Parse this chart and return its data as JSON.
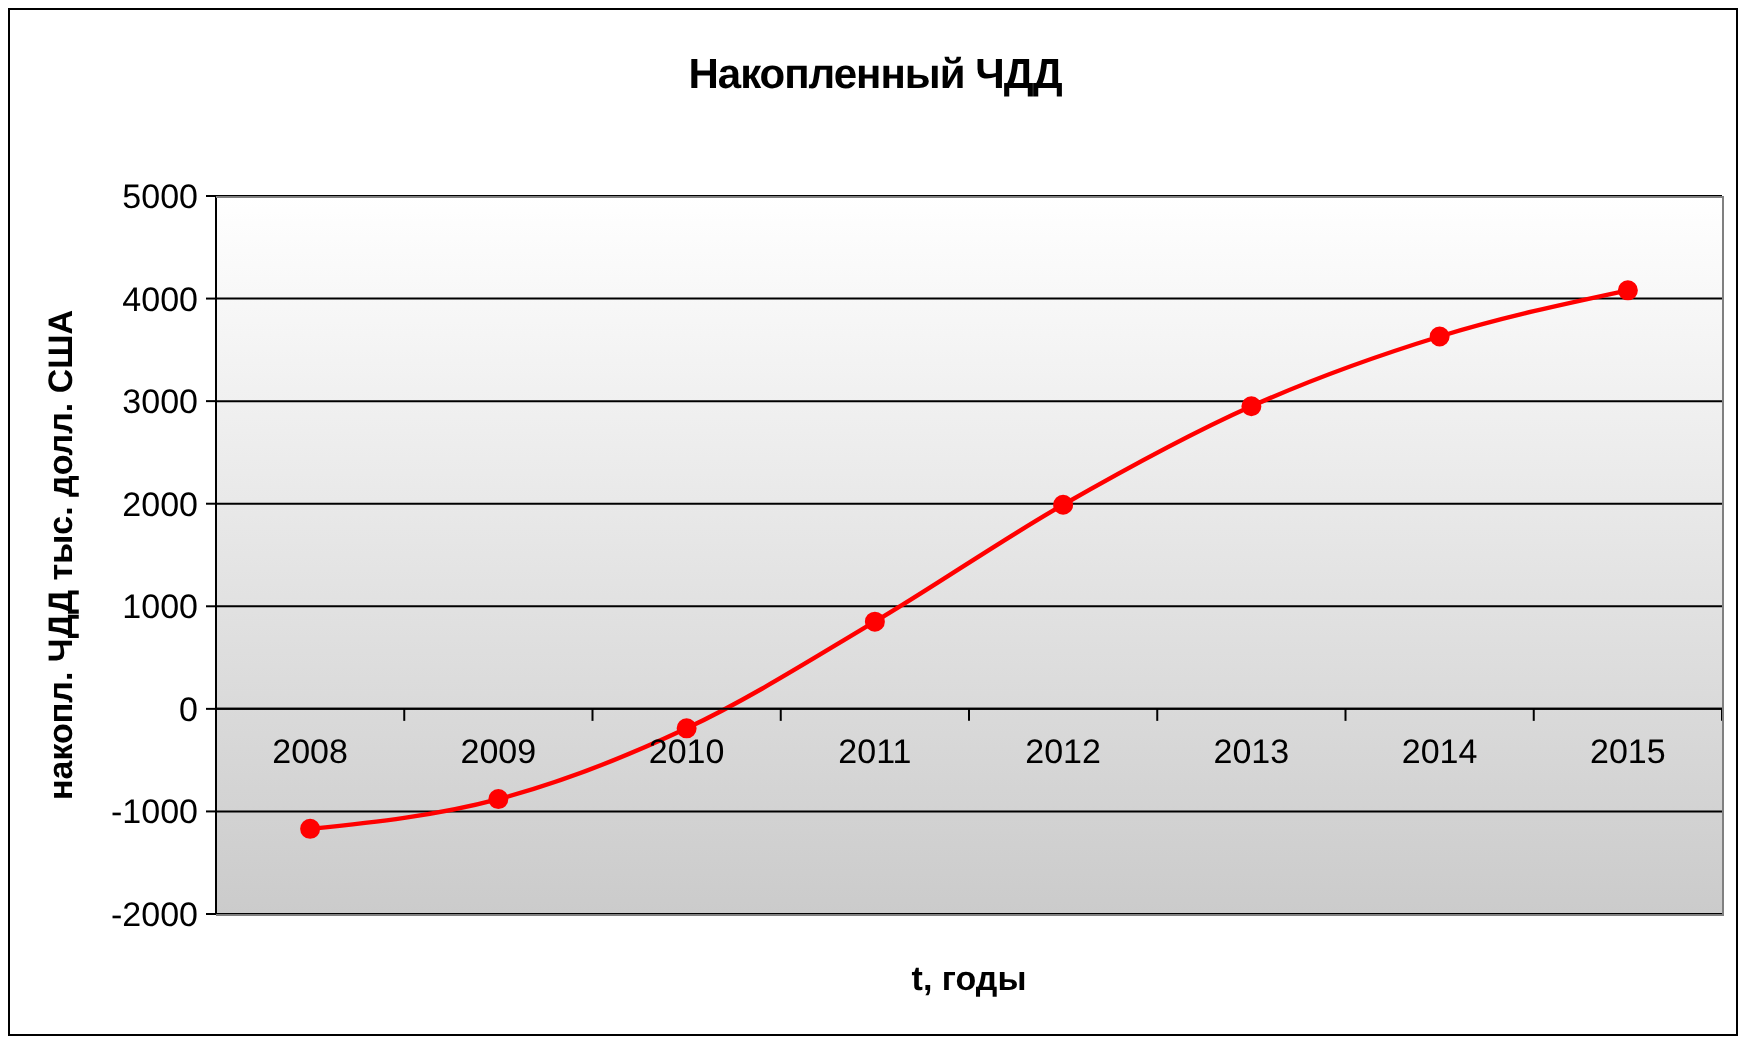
{
  "chart_data": {
    "type": "line",
    "title": "Накопленный ЧДД",
    "xlabel": "t, годы",
    "ylabel": "накопл. ЧДД тыс. долл. США",
    "categories": [
      "2008",
      "2009",
      "2010",
      "2011",
      "2012",
      "2013",
      "2014",
      "2015"
    ],
    "series": [
      {
        "color": "#ff0000",
        "values": [
          -1170,
          -880,
          -190,
          850,
          1990,
          2950,
          3630,
          4080
        ]
      }
    ],
    "ylim": [
      -2000,
      5000
    ],
    "yticks": [
      -2000,
      -1000,
      0,
      1000,
      2000,
      3000,
      4000,
      5000
    ],
    "grid": "y",
    "marker": "circle",
    "line_style": "solid"
  }
}
